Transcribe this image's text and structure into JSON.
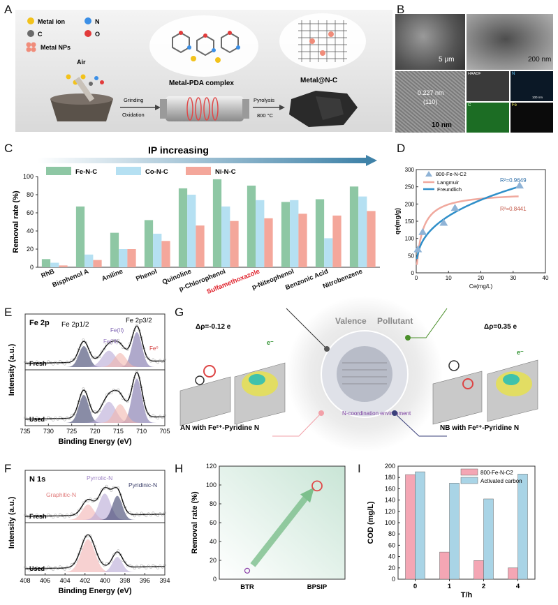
{
  "panels": {
    "A": "A",
    "B": "B",
    "C": "C",
    "D": "D",
    "E": "E",
    "F": "F",
    "G": "G",
    "H": "H",
    "I": "I"
  },
  "panelA": {
    "legend": [
      {
        "label": "Metal ion",
        "color": "#f2c21b"
      },
      {
        "label": "N",
        "color": "#3b8fe6"
      },
      {
        "label": "C",
        "color": "#6a6a6a"
      },
      {
        "label": "O",
        "color": "#e23b3b"
      },
      {
        "label": "Metal NPs",
        "color": "#f08c7a"
      }
    ],
    "air": "Air",
    "grinding": "Grinding",
    "oxidation": "Oxidation",
    "complex": "Metal-PDA complex",
    "pyrolysis": "Pyrolysis",
    "temp": "800 °C",
    "product": "Metal@N-C"
  },
  "panelB": {
    "scale1": "5 μm",
    "scale2": "200 nm",
    "d_spacing": "0.227 nm",
    "plane": "(110)",
    "scale3": "10 nm",
    "maps": [
      "HAADF",
      "N",
      "C",
      "Fe"
    ],
    "map_scale": "100 nm"
  },
  "panelC": {
    "arrow_label": "IP increasing",
    "chart_data": {
      "type": "bar",
      "ylabel": "Removal rate (%)",
      "ylim": [
        0,
        100
      ],
      "yticks": [
        0,
        20,
        40,
        60,
        80,
        100
      ],
      "categories": [
        "RhB",
        "Bisphenol A",
        "Aniline",
        "Phenol",
        "Quinoline",
        "p-Chlorophenol",
        "Sulfamethoxazole",
        "p-Niteophenol",
        "Benzonic Acid",
        "Nitrobenzene"
      ],
      "highlight": "Sulfamethoxazole",
      "series": [
        {
          "name": "Fe-N-C",
          "color": "#8ec7a4",
          "values": [
            9,
            67,
            38,
            52,
            87,
            97,
            90,
            72,
            75,
            89
          ]
        },
        {
          "name": "Co-N-C",
          "color": "#b5e0f2",
          "values": [
            5,
            14,
            20,
            37,
            80,
            67,
            74,
            74,
            32,
            78
          ]
        },
        {
          "name": "Ni-N-C",
          "color": "#f4a79b",
          "values": [
            2,
            8,
            20,
            29,
            46,
            51,
            54,
            59,
            57,
            62
          ]
        }
      ]
    }
  },
  "panelD": {
    "chart_data": {
      "type": "scatter",
      "xlabel": "Ce(mg/L)",
      "ylabel": "qe(mg/g)",
      "xlim": [
        0,
        40
      ],
      "ylim": [
        0,
        300
      ],
      "xticks": [
        0,
        10,
        20,
        30,
        40
      ],
      "yticks": [
        0,
        50,
        100,
        150,
        200,
        250,
        300
      ],
      "series": [
        {
          "name": "800-Fe-N-C2",
          "points": [
            [
              0.5,
              68
            ],
            [
              2,
              118
            ],
            [
              8.5,
              145
            ],
            [
              12,
              188
            ],
            [
              32,
              253
            ]
          ]
        },
        {
          "name": "Langmuir",
          "color": "#f0a99e"
        },
        {
          "name": "Freundlich",
          "color": "#2f8fc9"
        }
      ],
      "r2_freundlich": "R²=0.9649",
      "r2_langmuir": "R²=0.8441"
    }
  },
  "panelE": {
    "title": "Fe 2p",
    "fe12": "Fe 2p1/2",
    "fe32": "Fe 2p3/2",
    "fe2": "Fe(II)",
    "fe3": "Fe(III)",
    "fe0": "Fe⁰",
    "fresh": "Fresh",
    "used": "Used",
    "xlabel": "Binding Energy (eV)",
    "ylabel": "Intensity (a.u.)",
    "xticks": [
      "735",
      "730",
      "725",
      "720",
      "715",
      "710",
      "705"
    ]
  },
  "panelF": {
    "title": "N 1s",
    "pyrrolic": "Pyrrolic-N",
    "pyridinic": "Pyridinic-N",
    "graphitic": "Graphitic-N",
    "fresh": "Fresh",
    "used": "Used",
    "xlabel": "Binding Energy (eV)",
    "ylabel": "Intensity (a.u.)",
    "xticks": [
      "408",
      "406",
      "404",
      "402",
      "400",
      "398",
      "396",
      "394"
    ]
  },
  "panelG": {
    "valence": "Valence",
    "pollutant": "Pollutant",
    "rho_left": "Δρ=-0.12 e",
    "rho_right": "Δρ=0.35 e",
    "coordination": "N-coordination environment",
    "left_caption": "AN with Fe²⁺-Pyridine N",
    "right_caption": "NB with Fe²⁺-Pyridine N",
    "electron": "e⁻"
  },
  "panelH": {
    "chart_data": {
      "type": "scatter",
      "ylabel": "Removal rate (%)",
      "ylim": [
        0,
        120
      ],
      "yticks": [
        0,
        10,
        20,
        30,
        40,
        50,
        60,
        70,
        80,
        90,
        100,
        110,
        120
      ],
      "categories": [
        "BTR",
        "BPSIP"
      ],
      "values": [
        9,
        99
      ]
    }
  },
  "panelI": {
    "chart_data": {
      "type": "bar",
      "xlabel": "T/h",
      "ylabel": "COD (mg/L)",
      "ylim": [
        0,
        200
      ],
      "yticks": [
        0,
        20,
        40,
        60,
        80,
        100,
        120,
        140,
        160,
        180,
        200
      ],
      "categories": [
        "0",
        "1",
        "2",
        "4"
      ],
      "series": [
        {
          "name": "800-Fe-N-C2",
          "color": "#f4a6b4",
          "values": [
            185,
            48,
            33,
            20
          ]
        },
        {
          "name": "Activated carbon",
          "color": "#a9d4e6",
          "values": [
            190,
            170,
            142,
            186
          ]
        }
      ]
    }
  }
}
